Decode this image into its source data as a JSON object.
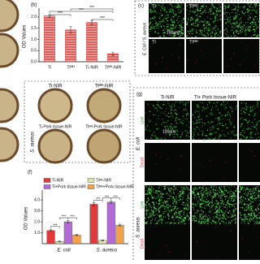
{
  "chart_data": [
    {
      "type": "bar",
      "panel": "(b)",
      "y_label": "OD Values",
      "categories": [
        "Ti",
        "Tiᴹᴴ",
        "Ti-NIR",
        "Tiᴹᴴ-NIR"
      ],
      "values": [
        2.05,
        1.42,
        1.75,
        0.35
      ],
      "errors": [
        0.06,
        0.15,
        0.1,
        0.08
      ],
      "color": "#d9302c",
      "ylim": [
        0,
        2.25
      ],
      "yticks": [
        {
          "value": 0,
          "label": "0.0"
        },
        {
          "value": 0.5,
          "label": "0.5"
        },
        {
          "value": 1,
          "label": "1.0"
        },
        {
          "value": 1.5,
          "label": "1.5"
        },
        {
          "value": 2,
          "label": "2.0"
        }
      ],
      "annotations": [
        "***",
        "***",
        "***",
        "***"
      ]
    },
    {
      "type": "grouped-bar",
      "panel": "(f)",
      "y_label": "OD Values",
      "categories": [
        "E. coli",
        "S. aureus"
      ],
      "series": [
        {
          "name": "Ti-NIR",
          "color": "#e03a3a",
          "values": [
            1.2,
            3.6
          ],
          "errors": [
            0.08,
            0.15
          ]
        },
        {
          "name": "Tiᴹᴴ-NIR",
          "color": "#c9d36e",
          "values": [
            0.2,
            0.3
          ],
          "errors": [
            0.05,
            0.05
          ]
        },
        {
          "name": "Ti+Pork tissue-NIR",
          "color": "#b46ad6",
          "values": [
            2.0,
            3.8
          ],
          "errors": [
            0.12,
            0.12
          ]
        },
        {
          "name": "Tiᴹᴴ+Pork tissue-NIR",
          "color": "#f2a14a",
          "values": [
            0.8,
            1.7
          ],
          "errors": [
            0.06,
            0.08
          ]
        }
      ],
      "ylim": [
        0,
        4.6
      ],
      "yticks": [
        {
          "value": 1,
          "label": "1.0"
        },
        {
          "value": 2,
          "label": "2.0"
        },
        {
          "value": 3,
          "label": "3.0"
        },
        {
          "value": 4,
          "label": "4.0"
        }
      ],
      "annotations": [
        "***",
        "***",
        "***",
        "***",
        "***",
        "***"
      ]
    }
  ],
  "panel_c": {
    "label": "(c)",
    "side_label": "E. Coli / S. aureus",
    "columns": [
      "Ti",
      "Tiᴹᴴ"
    ],
    "scale": "100μm"
  },
  "photos": {
    "labels": [
      "Ti-NIR",
      "Tiᴹᴴ-NIR",
      "Ti-Pork tissue-NIR",
      "Tiᴹᴴ-Pork tissue-NIR"
    ],
    "side_label": "S. aureus"
  },
  "panel_g": {
    "label": "(g)",
    "columns": [
      "Ti-NIR",
      "Ti+ Pork tissue-NIR"
    ],
    "scale": "100μm",
    "rows": [
      "Live",
      "Dead",
      "Live",
      "Dead"
    ],
    "groups": [
      "E. coli",
      "S. aureus"
    ]
  }
}
